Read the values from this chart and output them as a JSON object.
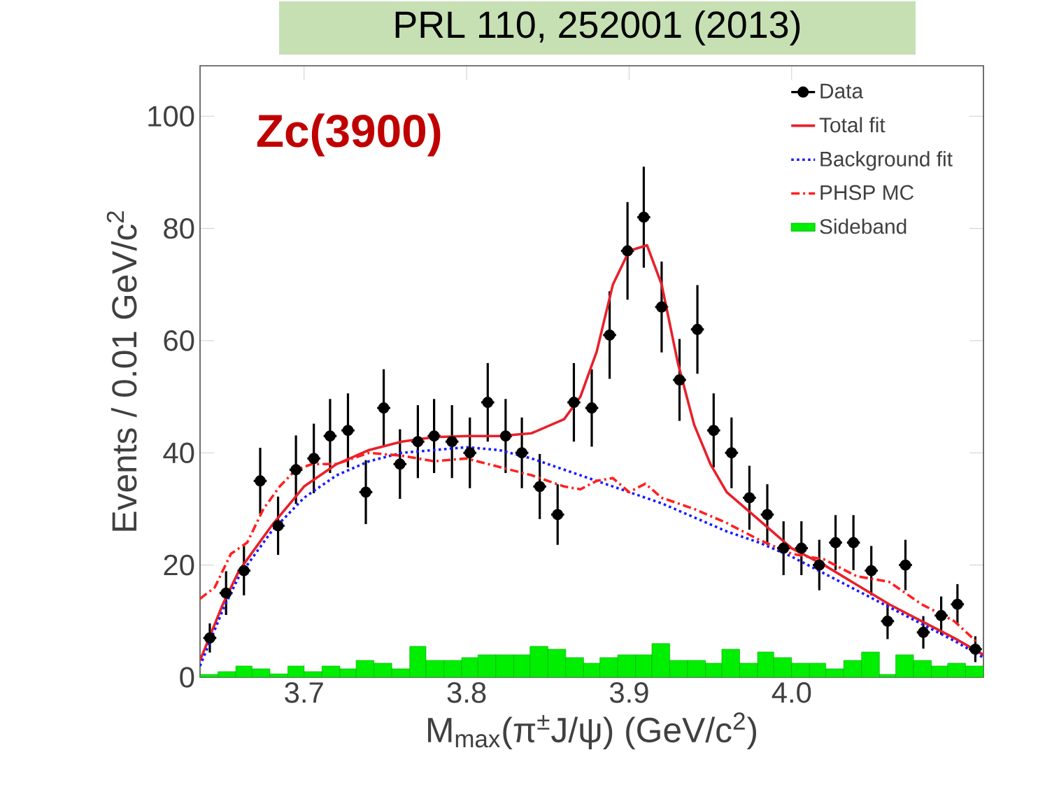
{
  "chart_data": {
    "type": "scatter",
    "title": "PRL 110, 252001  (2013)",
    "xlabel": "M$_{max}$(π$^{±}$J/ψ) (GeV/c$^{2}$)",
    "ylabel": "Events / 0.01 GeV/c$^{2}$",
    "annotations": [
      "Zc(3900)"
    ],
    "xlim": [
      3.636,
      4.118
    ],
    "ylim": [
      0,
      109
    ],
    "xticks": [
      3.7,
      3.8,
      3.9,
      {
        "value": 4.0,
        "label": "4.0"
      }
    ],
    "yticks": [
      0,
      20,
      40,
      60,
      80,
      100
    ],
    "legend": "top right",
    "series": [
      {
        "name": "Data",
        "color": "#000000",
        "marker": "circle",
        "x": [
          3.642,
          3.652,
          3.663,
          3.673,
          3.684,
          3.695,
          3.706,
          3.716,
          3.727,
          3.738,
          3.749,
          3.759,
          3.77,
          3.78,
          3.791,
          3.802,
          3.813,
          3.824,
          3.834,
          3.845,
          3.856,
          3.866,
          3.877,
          3.888,
          3.899,
          3.909,
          3.92,
          3.931,
          3.942,
          3.952,
          3.963,
          3.974,
          3.985,
          3.995,
          4.006,
          4.017,
          4.027,
          4.038,
          4.049,
          4.059,
          4.07,
          4.081,
          4.092,
          4.102,
          4.113
        ],
        "values": [
          7,
          15,
          19,
          35,
          27,
          37,
          39,
          43,
          44,
          33,
          48,
          38,
          42,
          43,
          42,
          40,
          49,
          43,
          40,
          34,
          29,
          49,
          48,
          61,
          76,
          82,
          66,
          53,
          62,
          44,
          40,
          32,
          29,
          23,
          23,
          20,
          24,
          24,
          19,
          10,
          20,
          8,
          11,
          13,
          5
        ],
        "errors": [
          2.6,
          3.9,
          4.4,
          5.9,
          5.2,
          6.1,
          6.2,
          6.6,
          6.6,
          5.7,
          6.9,
          6.2,
          6.5,
          6.6,
          6.5,
          6.3,
          7,
          6.6,
          6.3,
          5.8,
          5.4,
          7,
          6.9,
          7.8,
          8.7,
          9,
          8.1,
          7.3,
          7.9,
          6.6,
          6.3,
          5.7,
          5.4,
          4.8,
          4.8,
          4.5,
          4.9,
          4.9,
          4.4,
          3.2,
          4.5,
          2.9,
          3.4,
          3.6,
          2.3
        ],
        "xerrors": [
          0.004,
          0.004,
          0.004,
          0.004,
          0.004,
          0.004,
          0.004,
          0.004,
          0.004,
          0.004,
          0.004,
          0.004,
          0.004,
          0.004,
          0.004,
          0.004,
          0.004,
          0.004,
          0.004,
          0.004,
          0.004,
          0.004,
          0.004,
          0.004,
          0.004,
          0.004,
          0.004,
          0.004,
          0.004,
          0.004,
          0.004,
          0.004,
          0.004,
          0.004,
          0.004,
          0.004,
          0.004,
          0.004,
          0.004,
          0.004,
          0.004,
          0.004,
          0.004,
          0.004,
          0.004
        ]
      },
      {
        "name": "Total fit",
        "type": "line",
        "color": "#e8202a",
        "line_style": "solid",
        "x": [
          3.636,
          3.65,
          3.66,
          3.68,
          3.7,
          3.72,
          3.74,
          3.76,
          3.78,
          3.8,
          3.82,
          3.84,
          3.86,
          3.87,
          3.88,
          3.89,
          3.9,
          3.911,
          3.92,
          3.93,
          3.94,
          3.95,
          3.96,
          3.98,
          4.0,
          4.02,
          4.04,
          4.06,
          4.08,
          4.1,
          4.118
        ],
        "values": [
          3,
          13,
          19,
          27,
          34,
          38,
          40.5,
          42,
          42.8,
          43,
          43,
          43.5,
          46,
          50,
          58,
          70,
          76,
          77,
          70,
          56,
          45,
          38,
          33,
          28,
          23,
          20,
          16.5,
          13,
          10,
          7,
          4
        ]
      },
      {
        "name": "Background fit",
        "type": "line",
        "color": "#1a1aff",
        "line_style": "dotted",
        "x": [
          3.636,
          3.65,
          3.66,
          3.68,
          3.7,
          3.72,
          3.74,
          3.76,
          3.78,
          3.8,
          3.82,
          3.84,
          3.86,
          3.88,
          3.9,
          3.92,
          3.94,
          3.96,
          3.98,
          4.0,
          4.02,
          4.04,
          4.06,
          4.08,
          4.1,
          4.118
        ],
        "values": [
          2,
          12,
          18,
          26,
          32,
          36,
          38.5,
          40,
          40.5,
          41,
          40.5,
          39,
          37,
          35,
          33,
          31,
          28.5,
          26,
          24,
          21.5,
          18.5,
          15.5,
          12.5,
          9.5,
          6.5,
          3.5
        ]
      },
      {
        "name": "PHSP MC",
        "type": "line",
        "color": "#ff2020",
        "line_style": "dashed",
        "x": [
          3.636,
          3.645,
          3.655,
          3.665,
          3.675,
          3.685,
          3.695,
          3.705,
          3.72,
          3.74,
          3.76,
          3.78,
          3.8,
          3.82,
          3.84,
          3.86,
          3.87,
          3.88,
          3.89,
          3.9,
          3.91,
          3.92,
          3.94,
          3.96,
          3.98,
          4.0,
          4.02,
          4.04,
          4.06,
          4.08,
          4.1,
          4.115
        ],
        "values": [
          14,
          16,
          22,
          24,
          30,
          34,
          37,
          38,
          38,
          40,
          39.5,
          38.5,
          39,
          37.5,
          36,
          34,
          33.5,
          35,
          35.5,
          33,
          34.5,
          32,
          30,
          27.5,
          24.5,
          22,
          21,
          18,
          17,
          13,
          10,
          6
        ]
      },
      {
        "name": "Sideband",
        "type": "histogram",
        "color": "#00ee00",
        "bins": [
          3.636,
          3.647,
          3.658,
          3.668,
          3.679,
          3.69,
          3.7,
          3.711,
          3.722,
          3.732,
          3.743,
          3.754,
          3.765,
          3.775,
          3.786,
          3.797,
          3.807,
          3.818,
          3.829,
          3.839,
          3.85,
          3.861,
          3.872,
          3.882,
          3.893,
          3.904,
          3.914,
          3.925,
          3.936,
          3.947,
          3.957,
          3.968,
          3.979,
          3.989,
          4.0,
          4.011,
          4.021,
          4.032,
          4.043,
          4.054,
          4.064,
          4.075,
          4.086,
          4.096,
          4.107,
          4.118
        ],
        "values": [
          0.5,
          1,
          2,
          1.5,
          0.6,
          2,
          1,
          2,
          1.5,
          3,
          2.5,
          1.5,
          5.5,
          3,
          3,
          3.5,
          4,
          4,
          4,
          5.5,
          5,
          3.5,
          2.5,
          3.5,
          4,
          4,
          6,
          3,
          3,
          2.5,
          5,
          2.5,
          4.5,
          3.5,
          2.5,
          2.5,
          1.5,
          3,
          4.5,
          0.5,
          4,
          3,
          2,
          2.5,
          2
        ]
      }
    ]
  }
}
